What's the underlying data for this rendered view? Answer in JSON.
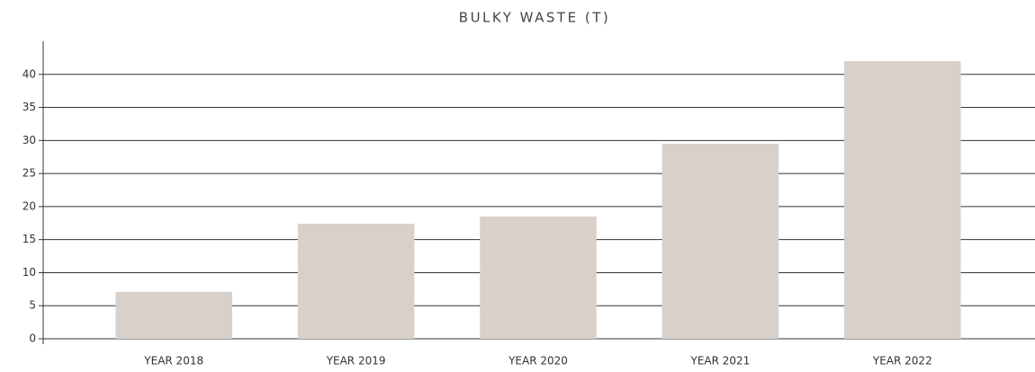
{
  "chart_data": {
    "type": "bar",
    "title": "BULKY WASTE (T)",
    "categories": [
      "YEAR 2018",
      "YEAR 2019",
      "YEAR 2020",
      "YEAR 2021",
      "YEAR 2022"
    ],
    "values": [
      7.1,
      17.4,
      18.5,
      29.5,
      42.0
    ],
    "color": "#d8d0cb",
    "ylim": [
      0,
      45
    ],
    "yticks": [
      0,
      5,
      10,
      15,
      20,
      25,
      30,
      35,
      40
    ],
    "grid": true
  }
}
